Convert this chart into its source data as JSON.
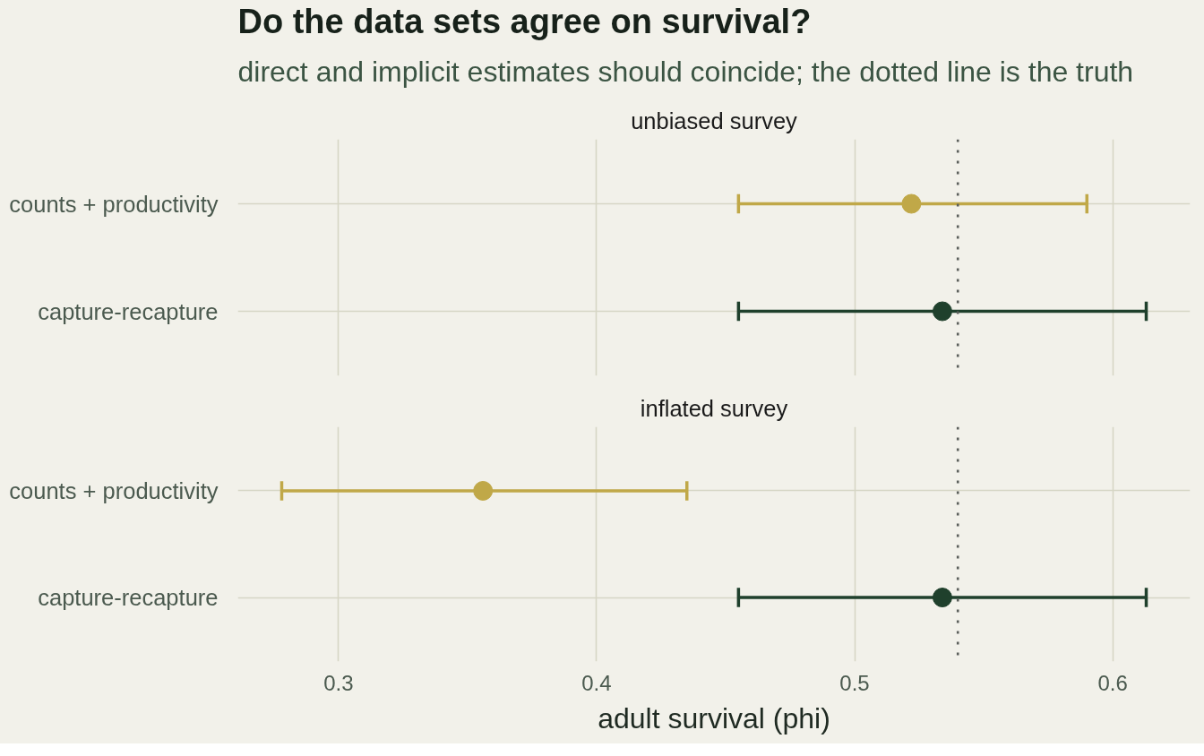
{
  "chart_data": [
    {
      "type": "scatter",
      "orientation": "horizontal",
      "title": "Do the data sets agree on survival?",
      "subtitle": "direct and implicit estimates should coincide; the dotted line is the truth",
      "annotations": [
        "unbiased survey"
      ],
      "categories": [
        "counts + productivity",
        "capture-recapture"
      ],
      "values": [
        0.522,
        0.534
      ],
      "errors": [
        [
          0.455,
          0.59
        ],
        [
          0.455,
          0.613
        ]
      ],
      "colors": [
        "#c0a848",
        "#1f402c"
      ],
      "xlim": [
        0.261,
        0.63
      ],
      "xticks": [
        0.3,
        0.4,
        0.5,
        0.6
      ],
      "ref_lines": [
        {
          "axis": "x",
          "value": 0.54,
          "color": "#5b5f5b",
          "line_style": "dotted"
        }
      ],
      "grid": true,
      "marker": "circle",
      "tick_labels": "y"
    },
    {
      "type": "scatter",
      "orientation": "horizontal",
      "title": "inflated survey",
      "xlabel": "adult survival (phi)",
      "categories": [
        "counts + productivity",
        "capture-recapture"
      ],
      "values": [
        0.356,
        0.534
      ],
      "errors": [
        [
          0.278,
          0.435
        ],
        [
          0.455,
          0.613
        ]
      ],
      "colors": [
        "#c0a848",
        "#1f402c"
      ],
      "xlim": [
        0.261,
        0.63
      ],
      "xticks": [
        0.3,
        0.4,
        0.5,
        0.6
      ],
      "ref_lines": [
        {
          "axis": "x",
          "value": 0.54,
          "color": "#5b5f5b",
          "line_style": "dotted"
        }
      ],
      "grid": true,
      "marker": "circle"
    }
  ]
}
